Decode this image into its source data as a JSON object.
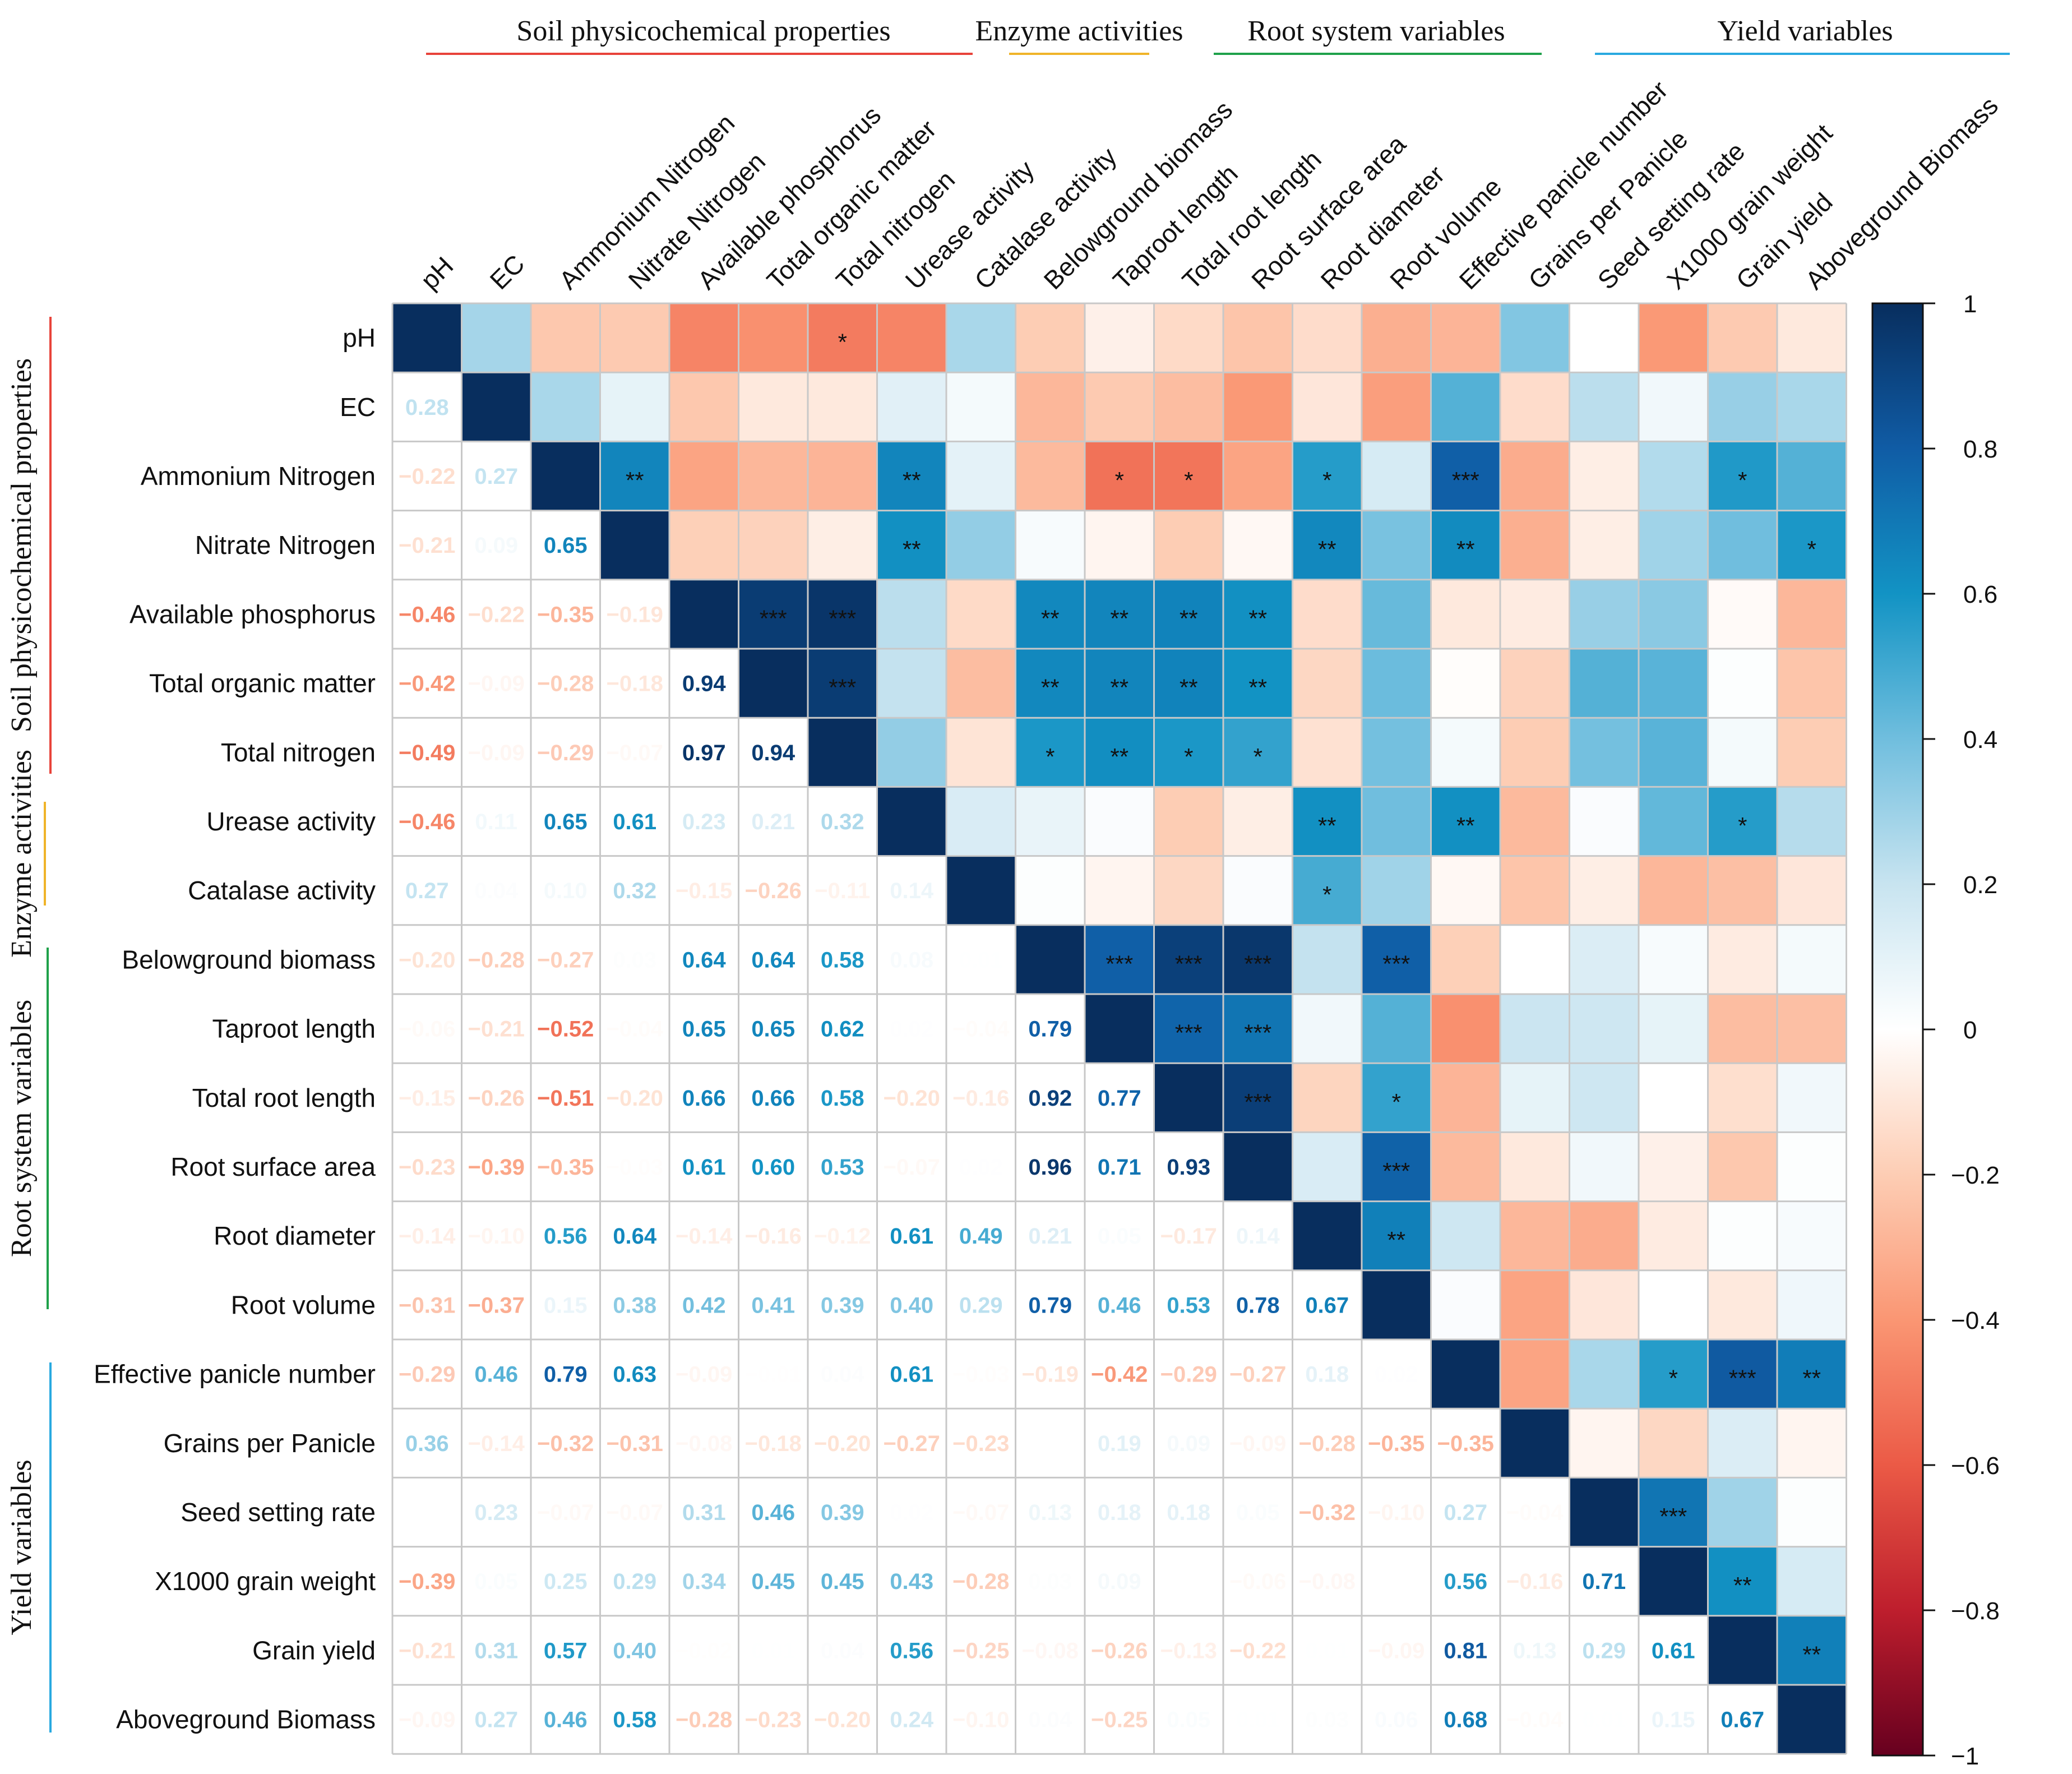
{
  "chart_data": {
    "type": "heatmap",
    "title": "",
    "variables": [
      "pH",
      "EC",
      "Ammonium Nitrogen",
      "Nitrate Nitrogen",
      "Available phosphorus",
      "Total organic matter",
      "Total nitrogen",
      "Urease activity",
      "Catalase activity",
      "Belowground biomass",
      "Taproot length",
      "Total root length",
      "Root surface area",
      "Root diameter",
      "Root volume",
      "Effective panicle number",
      "Grains per Panicle",
      "Seed setting rate",
      "X1000 grain weight",
      "Grain yield",
      "Aboveground Biomass"
    ],
    "groups": [
      {
        "name": "Soil physicochemical properties",
        "color": "#e8433a",
        "start": 0,
        "end": 6
      },
      {
        "name": "Enzyme activities",
        "color": "#f0b429",
        "start": 7,
        "end": 8
      },
      {
        "name": "Root system variables",
        "color": "#1fa14a",
        "start": 9,
        "end": 14
      },
      {
        "name": "Yield variables",
        "color": "#29a9e0",
        "start": 15,
        "end": 20
      }
    ],
    "correlations": [
      [
        null
      ],
      [
        0.28,
        null
      ],
      [
        -0.22,
        0.27,
        null
      ],
      [
        -0.21,
        0.09,
        0.65,
        null
      ],
      [
        -0.46,
        -0.22,
        -0.35,
        -0.19,
        null
      ],
      [
        -0.42,
        -0.09,
        -0.28,
        -0.18,
        0.94,
        null
      ],
      [
        -0.49,
        -0.09,
        -0.29,
        -0.07,
        0.97,
        0.94,
        null
      ],
      [
        -0.46,
        0.11,
        0.65,
        0.61,
        0.23,
        0.21,
        0.32,
        null
      ],
      [
        0.27,
        0.04,
        0.1,
        0.32,
        -0.15,
        -0.26,
        -0.11,
        0.14,
        null
      ],
      [
        -0.2,
        -0.28,
        -0.27,
        0.03,
        0.64,
        0.64,
        0.58,
        0.08,
        0.01,
        null
      ],
      [
        -0.06,
        -0.21,
        -0.52,
        -0.04,
        0.65,
        0.65,
        0.62,
        0.02,
        -0.04,
        0.79,
        null
      ],
      [
        -0.15,
        -0.26,
        -0.51,
        -0.2,
        0.66,
        0.66,
        0.58,
        -0.2,
        -0.16,
        0.92,
        0.77,
        null
      ],
      [
        -0.23,
        -0.39,
        -0.35,
        -0.03,
        0.61,
        0.6,
        0.53,
        -0.07,
        0.02,
        0.96,
        0.71,
        0.93,
        null
      ],
      [
        -0.14,
        -0.1,
        0.56,
        0.64,
        -0.14,
        -0.16,
        -0.12,
        0.61,
        0.49,
        0.21,
        0.05,
        -0.17,
        0.14,
        null
      ],
      [
        -0.31,
        -0.37,
        0.15,
        0.38,
        0.42,
        0.41,
        0.39,
        0.4,
        0.29,
        0.79,
        0.46,
        0.53,
        0.78,
        0.67,
        null
      ],
      [
        -0.29,
        0.46,
        0.79,
        0.63,
        -0.09,
        -0.01,
        0.04,
        0.61,
        -0.03,
        -0.19,
        -0.42,
        -0.29,
        -0.27,
        0.18,
        0.02,
        null
      ],
      [
        0.36,
        -0.14,
        -0.32,
        -0.31,
        -0.08,
        -0.18,
        -0.2,
        -0.27,
        -0.23,
        0.0,
        0.19,
        0.09,
        -0.09,
        -0.28,
        -0.35,
        -0.35,
        null
      ],
      [
        0.0,
        0.23,
        -0.07,
        -0.07,
        0.31,
        0.46,
        0.39,
        0.02,
        -0.07,
        0.13,
        0.18,
        0.18,
        0.05,
        -0.32,
        -0.1,
        0.27,
        -0.04,
        null
      ],
      [
        -0.39,
        0.05,
        0.25,
        0.29,
        0.34,
        0.45,
        0.45,
        0.43,
        -0.28,
        0.03,
        0.09,
        0.0,
        -0.06,
        -0.08,
        0.0,
        0.56,
        -0.16,
        0.71,
        null
      ],
      [
        -0.21,
        0.31,
        0.57,
        0.4,
        -0.02,
        0.01,
        0.04,
        0.56,
        -0.25,
        -0.08,
        -0.26,
        -0.13,
        -0.22,
        0.01,
        -0.09,
        0.81,
        0.13,
        0.29,
        0.61,
        null
      ],
      [
        -0.09,
        0.27,
        0.46,
        0.58,
        -0.28,
        -0.23,
        -0.2,
        0.24,
        -0.1,
        0.04,
        -0.25,
        0.05,
        0.01,
        0.03,
        0.06,
        0.68,
        -0.04,
        0.01,
        0.15,
        0.67,
        null
      ]
    ],
    "significance": [
      {
        "row": 0,
        "col": 6,
        "stars": "*"
      },
      {
        "row": 2,
        "col": 3,
        "stars": "**"
      },
      {
        "row": 2,
        "col": 7,
        "stars": "**"
      },
      {
        "row": 2,
        "col": 10,
        "stars": "*"
      },
      {
        "row": 2,
        "col": 11,
        "stars": "*"
      },
      {
        "row": 2,
        "col": 13,
        "stars": "*"
      },
      {
        "row": 2,
        "col": 15,
        "stars": "***"
      },
      {
        "row": 2,
        "col": 19,
        "stars": "*"
      },
      {
        "row": 3,
        "col": 7,
        "stars": "**"
      },
      {
        "row": 3,
        "col": 13,
        "stars": "**"
      },
      {
        "row": 3,
        "col": 15,
        "stars": "**"
      },
      {
        "row": 3,
        "col": 20,
        "stars": "*"
      },
      {
        "row": 4,
        "col": 5,
        "stars": "***"
      },
      {
        "row": 4,
        "col": 6,
        "stars": "***"
      },
      {
        "row": 4,
        "col": 9,
        "stars": "**"
      },
      {
        "row": 4,
        "col": 10,
        "stars": "**"
      },
      {
        "row": 4,
        "col": 11,
        "stars": "**"
      },
      {
        "row": 4,
        "col": 12,
        "stars": "**"
      },
      {
        "row": 5,
        "col": 6,
        "stars": "***"
      },
      {
        "row": 5,
        "col": 9,
        "stars": "**"
      },
      {
        "row": 5,
        "col": 10,
        "stars": "**"
      },
      {
        "row": 5,
        "col": 11,
        "stars": "**"
      },
      {
        "row": 5,
        "col": 12,
        "stars": "**"
      },
      {
        "row": 6,
        "col": 9,
        "stars": "*"
      },
      {
        "row": 6,
        "col": 10,
        "stars": "**"
      },
      {
        "row": 6,
        "col": 11,
        "stars": "*"
      },
      {
        "row": 6,
        "col": 12,
        "stars": "*"
      },
      {
        "row": 7,
        "col": 13,
        "stars": "**"
      },
      {
        "row": 7,
        "col": 15,
        "stars": "**"
      },
      {
        "row": 7,
        "col": 19,
        "stars": "*"
      },
      {
        "row": 8,
        "col": 13,
        "stars": "*"
      },
      {
        "row": 9,
        "col": 10,
        "stars": "***"
      },
      {
        "row": 9,
        "col": 11,
        "stars": "***"
      },
      {
        "row": 9,
        "col": 12,
        "stars": "***"
      },
      {
        "row": 9,
        "col": 14,
        "stars": "***"
      },
      {
        "row": 10,
        "col": 11,
        "stars": "***"
      },
      {
        "row": 10,
        "col": 12,
        "stars": "***"
      },
      {
        "row": 11,
        "col": 12,
        "stars": "***"
      },
      {
        "row": 11,
        "col": 14,
        "stars": "*"
      },
      {
        "row": 12,
        "col": 14,
        "stars": "***"
      },
      {
        "row": 13,
        "col": 14,
        "stars": "**"
      },
      {
        "row": 15,
        "col": 18,
        "stars": "*"
      },
      {
        "row": 15,
        "col": 19,
        "stars": "***"
      },
      {
        "row": 15,
        "col": 20,
        "stars": "**"
      },
      {
        "row": 17,
        "col": 18,
        "stars": "***"
      },
      {
        "row": 18,
        "col": 19,
        "stars": "**"
      },
      {
        "row": 19,
        "col": 20,
        "stars": "**"
      }
    ],
    "colorbar": {
      "range": [
        -1,
        1
      ],
      "ticks": [
        "1",
        "0.8",
        "0.6",
        "0.4",
        "0.2",
        "0",
        "−0.2",
        "−0.4",
        "−0.6",
        "−0.8",
        "−1"
      ],
      "positive_color": "#053061",
      "negative_color": "#67001f"
    }
  }
}
